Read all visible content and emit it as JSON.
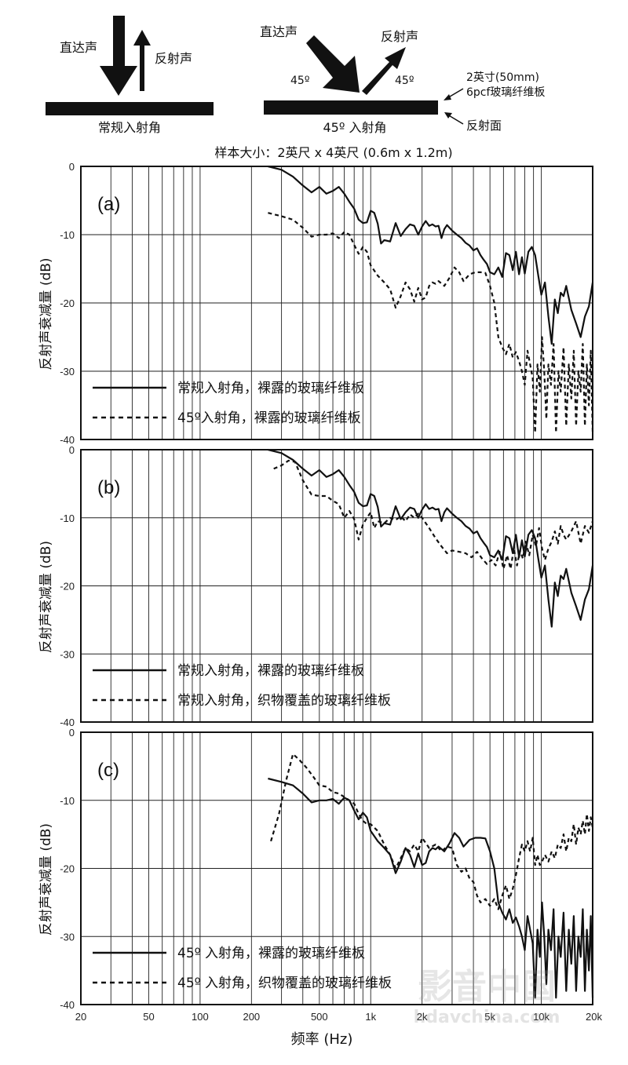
{
  "diagram": {
    "left": {
      "incident_label": "直达声",
      "reflected_label": "反射声",
      "caption": "常规入射角"
    },
    "right": {
      "incident_label": "直达声",
      "reflected_label": "反射声",
      "angle_in": "45º",
      "angle_out": "45º",
      "caption": "45º 入射角",
      "note_board_line1": "2英寸(50mm)",
      "note_board_line2": "6pcf玻璃纤维板",
      "note_surface": "反射面"
    },
    "sample_size": "样本大小：2英尺 x 4英尺 (0.6m x 1.2m)"
  },
  "x_axis": {
    "label": "频率 (Hz)",
    "ticks": [
      "20",
      "50",
      "100",
      "200",
      "500",
      "1k",
      "2k",
      "5k",
      "10k",
      "20k"
    ]
  },
  "watermark": {
    "line1": "影音中国",
    "line2": "hdavchina.com"
  },
  "chart_data": [
    {
      "type": "line",
      "panel_label": "(a)",
      "ylabel": "反射声衰减量 (dB)",
      "yticks": [
        "0",
        "-10",
        "-20",
        "-30",
        "-40"
      ],
      "ylim": [
        -40,
        0
      ],
      "xscale": "log",
      "xlim": [
        20,
        20000
      ],
      "grid": true,
      "legend_placement": "bottom-left",
      "series": [
        {
          "name": "常规入射角，裸露的玻璃纤维板",
          "style": "solid",
          "x": [
            250,
            300,
            350,
            400,
            450,
            500,
            550,
            600,
            650,
            700,
            750,
            800,
            850,
            900,
            950,
            1000,
            1050,
            1100,
            1150,
            1200,
            1300,
            1400,
            1500,
            1600,
            1700,
            1800,
            1900,
            2000,
            2100,
            2200,
            2300,
            2400,
            2500,
            2600,
            2700,
            2800,
            3000,
            3200,
            3400,
            3600,
            3800,
            4000,
            4200,
            4400,
            4600,
            4800,
            5000,
            5300,
            5600,
            5900,
            6200,
            6500,
            6800,
            7100,
            7400,
            7700,
            8000,
            8400,
            8800,
            9200,
            9600,
            10000,
            10500,
            11000,
            11500,
            12000,
            12500,
            13000,
            13500,
            14000,
            15000,
            16000,
            17000,
            18000,
            19000,
            20000
          ],
          "y": [
            0,
            -0.5,
            -1.5,
            -2.8,
            -3.8,
            -3.0,
            -4.0,
            -3.6,
            -3.0,
            -4.0,
            -5.2,
            -6.2,
            -7.8,
            -8.3,
            -8.2,
            -6.5,
            -6.8,
            -8.4,
            -11.3,
            -10.8,
            -11.0,
            -8.3,
            -10.2,
            -9.2,
            -8.5,
            -8.7,
            -10.0,
            -8.8,
            -8.0,
            -8.7,
            -8.5,
            -8.8,
            -8.7,
            -10.5,
            -9.2,
            -8.6,
            -9.4,
            -10.0,
            -10.5,
            -11.2,
            -11.6,
            -12.3,
            -12.0,
            -13.0,
            -13.7,
            -14.3,
            -15.5,
            -15.8,
            -14.8,
            -16.2,
            -12.7,
            -13.0,
            -15.2,
            -12.5,
            -15.8,
            -13.3,
            -15.7,
            -12.5,
            -11.8,
            -13.0,
            -16.0,
            -18.8,
            -17.0,
            -22.0,
            -26.0,
            -19.5,
            -21.5,
            -18.5,
            -19.0,
            -17.5,
            -21.0,
            -23.0,
            -25.0,
            -22.0,
            -20.5,
            -17.0
          ]
        },
        {
          "name": "45º入射角，裸露的玻璃纤维板",
          "style": "dashed",
          "x": [
            250,
            300,
            350,
            400,
            450,
            500,
            550,
            600,
            650,
            700,
            750,
            800,
            850,
            900,
            950,
            1000,
            1100,
            1200,
            1300,
            1400,
            1500,
            1600,
            1700,
            1800,
            1900,
            2000,
            2100,
            2200,
            2300,
            2400,
            2500,
            2700,
            2900,
            3100,
            3300,
            3500,
            3800,
            4100,
            4400,
            4700,
            5000,
            5300,
            5600,
            5900,
            6200,
            6500,
            6800,
            7100,
            7400,
            7700,
            8000,
            8300,
            8600,
            8900,
            9200,
            9500,
            9800,
            10100,
            10400,
            10700,
            11000,
            11400,
            11800,
            12200,
            12600,
            13000,
            13500,
            14000,
            14500,
            15000,
            15500,
            16000,
            16500,
            17000,
            17500,
            18000,
            18500,
            19000,
            19500,
            20000
          ],
          "y": [
            -6.8,
            -7.3,
            -7.8,
            -9.0,
            -10.3,
            -10.0,
            -10.0,
            -9.8,
            -10.5,
            -9.6,
            -10.0,
            -11.5,
            -12.8,
            -11.8,
            -12.5,
            -14.5,
            -16.0,
            -17.0,
            -18.0,
            -20.7,
            -19.0,
            -17.0,
            -18.0,
            -19.8,
            -17.8,
            -19.5,
            -19.2,
            -17.5,
            -17.0,
            -17.2,
            -16.8,
            -17.5,
            -16.3,
            -14.8,
            -15.5,
            -16.8,
            -15.8,
            -15.5,
            -15.5,
            -15.6,
            -17.5,
            -20.0,
            -25.0,
            -26.5,
            -27.5,
            -26.0,
            -28.0,
            -27.2,
            -28.5,
            -30.0,
            -32.0,
            -27.0,
            -29.0,
            -31.0,
            -39.0,
            -29.0,
            -33.0,
            -25.0,
            -30.0,
            -37.0,
            -29.0,
            -32.0,
            -26.0,
            -39.0,
            -30.0,
            -33.0,
            -26.5,
            -38.0,
            -29.0,
            -34.0,
            -27.0,
            -38.0,
            -30.0,
            -33.0,
            -26.0,
            -38.0,
            -29.0,
            -35.0,
            -27.0,
            -39.0
          ]
        }
      ]
    },
    {
      "type": "line",
      "panel_label": "(b)",
      "ylabel": "反射声衰减量 (dB)",
      "yticks": [
        "0",
        "-10",
        "-20",
        "-30",
        "-40"
      ],
      "ylim": [
        -40,
        0
      ],
      "xscale": "log",
      "xlim": [
        20,
        20000
      ],
      "grid": true,
      "legend_placement": "bottom-left",
      "series": [
        {
          "name": "常规入射角，裸露的玻璃纤维板",
          "style": "solid",
          "x": [
            250,
            300,
            350,
            400,
            450,
            500,
            550,
            600,
            650,
            700,
            750,
            800,
            850,
            900,
            950,
            1000,
            1050,
            1100,
            1150,
            1200,
            1300,
            1400,
            1500,
            1600,
            1700,
            1800,
            1900,
            2000,
            2100,
            2200,
            2300,
            2400,
            2500,
            2600,
            2700,
            2800,
            3000,
            3200,
            3400,
            3600,
            3800,
            4000,
            4200,
            4400,
            4600,
            4800,
            5000,
            5300,
            5600,
            5900,
            6200,
            6500,
            6800,
            7100,
            7400,
            7700,
            8000,
            8400,
            8800,
            9200,
            9600,
            10000,
            10500,
            11000,
            11500,
            12000,
            12500,
            13000,
            13500,
            14000,
            15000,
            16000,
            17000,
            18000,
            19000,
            20000
          ],
          "y": [
            0,
            -0.5,
            -1.5,
            -2.8,
            -3.8,
            -3.0,
            -4.0,
            -3.6,
            -3.0,
            -4.0,
            -5.2,
            -6.2,
            -7.8,
            -8.3,
            -8.2,
            -6.5,
            -6.8,
            -8.4,
            -11.3,
            -10.8,
            -11.0,
            -8.3,
            -10.2,
            -9.2,
            -8.5,
            -8.7,
            -10.0,
            -8.8,
            -8.0,
            -8.7,
            -8.5,
            -8.8,
            -8.7,
            -10.5,
            -9.2,
            -8.6,
            -9.4,
            -10.0,
            -10.5,
            -11.2,
            -11.6,
            -12.3,
            -12.0,
            -13.0,
            -13.7,
            -14.3,
            -15.5,
            -15.8,
            -14.8,
            -16.2,
            -12.7,
            -13.0,
            -15.2,
            -12.5,
            -15.8,
            -13.3,
            -15.7,
            -12.5,
            -11.8,
            -13.0,
            -16.0,
            -18.8,
            -17.0,
            -22.0,
            -26.0,
            -19.5,
            -21.5,
            -18.5,
            -19.0,
            -17.5,
            -21.0,
            -23.0,
            -25.0,
            -22.0,
            -20.5,
            -17.0
          ]
        },
        {
          "name": "常规入射角，织物覆盖的玻璃纤维板",
          "style": "dashed",
          "x": [
            270,
            300,
            330,
            360,
            400,
            450,
            500,
            550,
            600,
            650,
            700,
            750,
            800,
            850,
            900,
            950,
            1000,
            1050,
            1100,
            1200,
            1300,
            1400,
            1500,
            1600,
            1700,
            1800,
            1900,
            2000,
            2200,
            2400,
            2600,
            2800,
            3000,
            3300,
            3600,
            3900,
            4200,
            4500,
            4800,
            5100,
            5400,
            5700,
            6000,
            6300,
            6600,
            6900,
            7200,
            7500,
            7800,
            8100,
            8500,
            8900,
            9300,
            9700,
            10100,
            10500,
            11000,
            11500,
            12000,
            12500,
            13000,
            13500,
            14000,
            15000,
            16000,
            17000,
            18000,
            19000,
            20000
          ],
          "y": [
            -2.8,
            -2.3,
            -1.6,
            -1.8,
            -4.5,
            -6.6,
            -6.8,
            -6.8,
            -7.5,
            -8.0,
            -10.0,
            -9.0,
            -10.2,
            -13.2,
            -11.0,
            -10.0,
            -9.2,
            -11.5,
            -10.5,
            -10.8,
            -10.0,
            -10.3,
            -9.8,
            -10.5,
            -9.5,
            -10.0,
            -9.4,
            -10.0,
            -11.5,
            -13.0,
            -14.2,
            -15.2,
            -14.8,
            -15.0,
            -15.2,
            -15.8,
            -15.0,
            -16.0,
            -16.8,
            -16.2,
            -17.0,
            -15.0,
            -17.5,
            -15.5,
            -17.5,
            -14.5,
            -17.0,
            -14.8,
            -16.0,
            -13.5,
            -15.5,
            -12.5,
            -14.2,
            -11.5,
            -14.5,
            -16.2,
            -14.5,
            -13.5,
            -12.0,
            -13.8,
            -11.2,
            -12.5,
            -13.2,
            -12.0,
            -10.5,
            -13.8,
            -11.2,
            -12.2,
            -10.5
          ]
        }
      ]
    },
    {
      "type": "line",
      "panel_label": "(c)",
      "ylabel": "反射声衰减量 (dB)",
      "yticks": [
        "0",
        "-10",
        "-20",
        "-30",
        "-40"
      ],
      "ylim": [
        -40,
        0
      ],
      "xscale": "log",
      "xlim": [
        20,
        20000
      ],
      "grid": true,
      "legend_placement": "bottom-left",
      "series": [
        {
          "name": "45º 入射角，裸露的玻璃纤维板",
          "style": "solid",
          "x": [
            250,
            300,
            350,
            400,
            450,
            500,
            550,
            600,
            650,
            700,
            750,
            800,
            850,
            900,
            950,
            1000,
            1100,
            1200,
            1300,
            1400,
            1500,
            1600,
            1700,
            1800,
            1900,
            2000,
            2100,
            2200,
            2300,
            2400,
            2500,
            2700,
            2900,
            3100,
            3300,
            3500,
            3800,
            4100,
            4400,
            4700,
            5000,
            5300,
            5600,
            5900,
            6200,
            6500,
            6800,
            7100,
            7400,
            7700,
            8000,
            8300,
            8600,
            8900,
            9200,
            9500,
            9800,
            10100,
            10400,
            10700,
            11000,
            11400,
            11800,
            12200,
            12600,
            13000,
            13500,
            14000,
            14500,
            15000,
            15500,
            16000,
            16500,
            17000,
            17500,
            18000,
            18500,
            19000,
            19500,
            20000
          ],
          "y": [
            -6.8,
            -7.3,
            -7.8,
            -9.0,
            -10.3,
            -10.0,
            -10.0,
            -9.8,
            -10.5,
            -9.6,
            -10.0,
            -11.5,
            -12.8,
            -11.8,
            -12.5,
            -14.5,
            -16.0,
            -17.0,
            -18.0,
            -20.7,
            -19.0,
            -17.0,
            -18.0,
            -19.8,
            -17.8,
            -19.5,
            -19.2,
            -17.5,
            -17.0,
            -17.2,
            -16.8,
            -17.5,
            -16.3,
            -14.8,
            -15.5,
            -16.8,
            -15.8,
            -15.5,
            -15.5,
            -15.6,
            -17.5,
            -20.0,
            -25.0,
            -26.5,
            -27.5,
            -26.0,
            -28.0,
            -27.2,
            -28.5,
            -30.0,
            -32.0,
            -27.0,
            -29.0,
            -31.0,
            -39.0,
            -29.0,
            -33.0,
            -25.0,
            -30.0,
            -37.0,
            -29.0,
            -32.0,
            -26.0,
            -39.0,
            -30.0,
            -33.0,
            -26.5,
            -38.0,
            -29.0,
            -34.0,
            -27.0,
            -38.0,
            -30.0,
            -33.0,
            -26.0,
            -38.0,
            -29.0,
            -35.0,
            -27.0,
            -39.0
          ]
        },
        {
          "name": "45º 入射角，织物覆盖的玻璃纤维板",
          "style": "dashed",
          "x": [
            260,
            290,
            320,
            350,
            380,
            420,
            460,
            500,
            550,
            600,
            650,
            700,
            750,
            800,
            850,
            900,
            950,
            1000,
            1100,
            1200,
            1300,
            1400,
            1500,
            1600,
            1700,
            1800,
            1900,
            2000,
            2200,
            2400,
            2600,
            2800,
            3000,
            3200,
            3400,
            3600,
            3800,
            4000,
            4200,
            4400,
            4700,
            5000,
            5300,
            5600,
            5900,
            6200,
            6500,
            6800,
            7100,
            7400,
            7700,
            8000,
            8300,
            8600,
            8900,
            9200,
            9500,
            9800,
            10100,
            10500,
            11000,
            11500,
            12000,
            12500,
            13000,
            13500,
            14000,
            14500,
            15000,
            15500,
            16000,
            16500,
            17000,
            17500,
            18000,
            18500,
            19000,
            19500,
            20000
          ],
          "y": [
            -16.0,
            -12.0,
            -7.0,
            -3.2,
            -4.0,
            -5.2,
            -6.5,
            -7.8,
            -8.0,
            -8.8,
            -9.0,
            -9.5,
            -10.0,
            -10.5,
            -12.0,
            -13.0,
            -13.5,
            -13.5,
            -14.5,
            -16.5,
            -18.0,
            -20.0,
            -18.5,
            -17.0,
            -17.5,
            -16.5,
            -17.5,
            -15.5,
            -17.0,
            -16.5,
            -17.5,
            -16.8,
            -17.0,
            -19.5,
            -20.5,
            -20.0,
            -21.5,
            -22.0,
            -24.0,
            -25.0,
            -24.5,
            -25.5,
            -24.5,
            -26.0,
            -24.0,
            -22.5,
            -24.5,
            -23.0,
            -21.0,
            -18.5,
            -16.5,
            -17.5,
            -16.0,
            -17.5,
            -15.5,
            -19.5,
            -18.0,
            -19.5,
            -19.0,
            -18.0,
            -19.0,
            -17.5,
            -18.5,
            -16.5,
            -17.0,
            -15.0,
            -17.5,
            -15.5,
            -16.0,
            -13.5,
            -16.5,
            -14.0,
            -15.0,
            -13.0,
            -15.0,
            -12.0,
            -14.5,
            -12.5,
            -14.0
          ]
        }
      ]
    }
  ]
}
